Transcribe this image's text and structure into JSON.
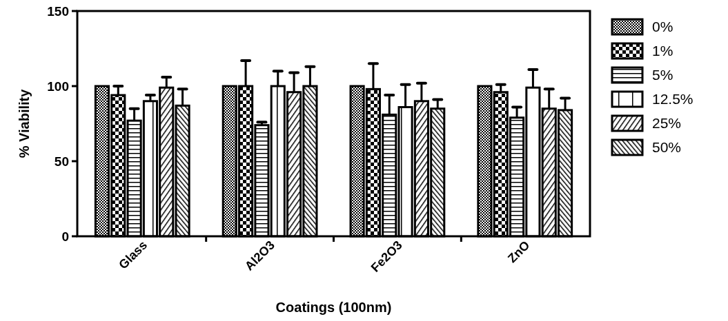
{
  "chart_data": {
    "type": "bar",
    "xlabel": "Coatings (100nm)",
    "ylabel": "% Viability",
    "categories": [
      "Glass",
      "Al2O3",
      "Fe2O3",
      "ZnO"
    ],
    "ylim": [
      0,
      150
    ],
    "yticks": [
      0,
      50,
      100,
      150
    ],
    "grid": false,
    "legend": "right",
    "series": [
      {
        "name": "0%",
        "color": "#000000",
        "values": [
          100,
          100,
          100,
          100
        ],
        "errors": [
          null,
          null,
          null,
          null
        ]
      },
      {
        "name": "1%",
        "color": "#000000",
        "values": [
          94,
          100,
          98,
          96
        ],
        "errors": [
          [
            94,
            100
          ],
          [
            100,
            117
          ],
          [
            98,
            115
          ],
          [
            96,
            101
          ]
        ]
      },
      {
        "name": "5%",
        "color": "#000000",
        "values": [
          77,
          74,
          81,
          79
        ],
        "errors": [
          [
            77,
            85
          ],
          [
            74,
            76
          ],
          [
            81,
            94
          ],
          [
            79,
            86
          ]
        ]
      },
      {
        "name": "12.5%",
        "color": "#000000",
        "values": [
          90,
          100,
          86,
          99
        ],
        "errors": [
          [
            90,
            94
          ],
          [
            100,
            110
          ],
          [
            86,
            101
          ],
          [
            99,
            111
          ]
        ]
      },
      {
        "name": "25%",
        "color": "#000000",
        "values": [
          99,
          96,
          90,
          85
        ],
        "errors": [
          [
            99,
            106
          ],
          [
            96,
            109
          ],
          [
            90,
            102
          ],
          [
            85,
            98
          ]
        ]
      },
      {
        "name": "50%",
        "color": "#000000",
        "values": [
          87,
          100,
          85,
          84
        ],
        "errors": [
          [
            87,
            98
          ],
          [
            100,
            113
          ],
          [
            85,
            91
          ],
          [
            84,
            92
          ]
        ]
      }
    ]
  }
}
